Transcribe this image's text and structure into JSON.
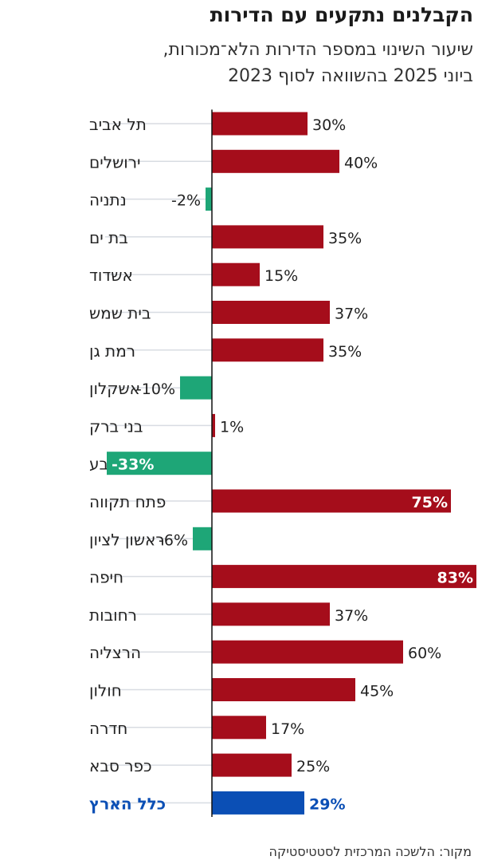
{
  "header": {
    "title": "הקבלנים נתקעים עם הדירות",
    "subtitle_line1": "שיעור השינוי במספר הדירות הלא־מכורות,",
    "subtitle_line2": "ביוני 2025 בהשוואה לסוף 2023"
  },
  "source": "מקור: הלשכה המרכזית לסטטיסטיקה",
  "chart_data": {
    "type": "bar",
    "orientation": "horizontal",
    "title": "הקבלנים נתקעים עם הדירות",
    "subtitle": "שיעור השינוי במספר הדירות הלא־מכורות, ביוני 2025 בהשוואה לסוף 2023",
    "unit": "%",
    "xlim": [
      -33,
      83
    ],
    "categories": [
      "תל אביב",
      "ירושלים",
      "נתניה",
      "בת ים",
      "אשדוד",
      "בית שמש",
      "רמת גן",
      "אשקלון",
      "בני ברק",
      "באר שבע",
      "פתח תקווה",
      "ראשון לציון",
      "חיפה",
      "רחובות",
      "הרצליה",
      "חולון",
      "חדרה",
      "כפר סבא",
      "כלל הארץ"
    ],
    "values": [
      30,
      40,
      -2,
      35,
      15,
      37,
      35,
      -10,
      1,
      -33,
      75,
      -6,
      83,
      37,
      60,
      45,
      17,
      25,
      29
    ],
    "value_labels": [
      "30%",
      "40%",
      "-2%",
      "35%",
      "15%",
      "37%",
      "35%",
      "-10%",
      "1%",
      "-33%",
      "75%",
      "-6%",
      "83%",
      "37%",
      "60%",
      "45%",
      "17%",
      "25%",
      "29%"
    ],
    "total_category": "כלל הארץ",
    "colors": {
      "positive": "#a50d1b",
      "negative": "#1ea677",
      "total": "#0b4fb5",
      "total_label": "#0b4fb5",
      "grid": "#d8dce2",
      "axis": "#111111"
    }
  }
}
